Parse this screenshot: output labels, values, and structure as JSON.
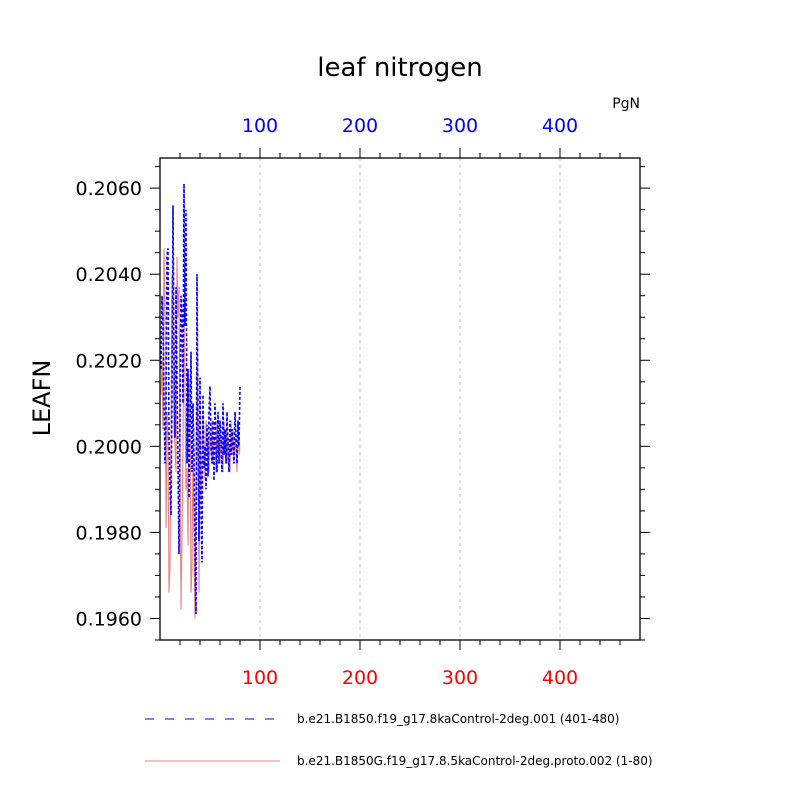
{
  "chart_data": {
    "type": "line",
    "title": "leaf nitrogen",
    "ylabel": "LEAFN",
    "units_label": "PgN",
    "xlim": [
      0,
      480
    ],
    "ylim": [
      0.1955,
      0.2067
    ],
    "y_ticks": [
      0.196,
      0.198,
      0.2,
      0.202,
      0.204,
      0.206
    ],
    "y_tick_labels": [
      "0.1960",
      "0.1980",
      "0.2000",
      "0.2020",
      "0.2040",
      "0.2060"
    ],
    "x_ticks": [
      100,
      200,
      300,
      400
    ],
    "x_tick_labels": [
      "100",
      "200",
      "300",
      "400"
    ],
    "grid": "vertical dashed",
    "legend_position": "bottom",
    "colors": {
      "blue": "#0000ff",
      "red": "#ff0000",
      "red_line": "#f08080",
      "grid": "#c0c0c0"
    },
    "series": [
      {
        "name": "b.e21.B1850.f19_g17.8kaControl-2deg.001 (401-480)",
        "color": "#0000ff",
        "style": "dashed",
        "x_start": 1,
        "values": [
          0.2018,
          0.2035,
          0.2028,
          0.201,
          0.1996,
          0.2008,
          0.2044,
          0.2046,
          0.2003,
          0.199,
          0.1984,
          0.2012,
          0.2056,
          0.2022,
          0.2002,
          0.2037,
          0.2015,
          0.1996,
          0.1975,
          0.2008,
          0.2035,
          0.203,
          0.201,
          0.2061,
          0.2028,
          0.2055,
          0.1996,
          0.2018,
          0.1988,
          0.2005,
          0.2022,
          0.1994,
          0.201,
          0.1998,
          0.1975,
          0.1961,
          0.204,
          0.2004,
          0.1978,
          0.2016,
          0.1985,
          0.1973,
          0.2012,
          0.1995,
          0.2,
          0.199,
          0.2005,
          0.1993,
          0.2008,
          0.2014,
          0.2,
          0.1996,
          0.2006,
          0.1992,
          0.201,
          0.2,
          0.1994,
          0.2008,
          0.1996,
          0.2006,
          0.2002,
          0.1994,
          0.201,
          0.1998,
          0.2004,
          0.1996,
          0.2008,
          0.2,
          0.1994,
          0.2006,
          0.1998,
          0.2004,
          0.2,
          0.1996,
          0.2008,
          0.2002,
          0.1996,
          0.2006,
          0.2,
          0.2014
        ]
      },
      {
        "name": "b.e21.B1850G.f19_g17.8.5kaControl-2deg.proto.002 (1-80)",
        "color": "#f08080",
        "style": "solid",
        "x_start": 1,
        "values": [
          0.2012,
          0.202,
          0.2004,
          0.2046,
          0.203,
          0.1981,
          0.2008,
          0.2002,
          0.1966,
          0.1972,
          0.2,
          0.204,
          0.202,
          0.2004,
          0.2,
          0.1994,
          0.2044,
          0.203,
          0.2037,
          0.2002,
          0.1962,
          0.198,
          0.2,
          0.2034,
          0.2012,
          0.199,
          0.1995,
          0.1977,
          0.2016,
          0.2008,
          0.1966,
          0.1971,
          0.2,
          0.1978,
          0.196,
          0.199,
          0.2022,
          0.2006,
          0.1966,
          0.2003,
          0.1988,
          0.1996,
          0.2008,
          0.2,
          0.1992,
          0.2006,
          0.1998,
          0.2002,
          0.1994,
          0.2004,
          0.1998,
          0.2006,
          0.1996,
          0.2002,
          0.2,
          0.1994,
          0.2006,
          0.1998,
          0.2004,
          0.1996,
          0.2002,
          0.2,
          0.1994,
          0.2006,
          0.1998,
          0.2004,
          0.1996,
          0.2002,
          0.2,
          0.1994,
          0.2006,
          0.1998,
          0.2004,
          0.1996,
          0.2002,
          0.2,
          0.1994,
          0.2006,
          0.1998,
          0.2
        ]
      }
    ]
  }
}
